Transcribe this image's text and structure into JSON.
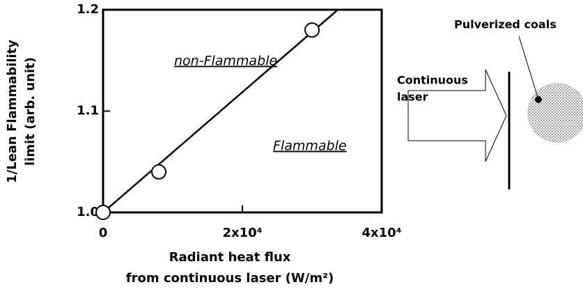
{
  "chart_data": {
    "type": "line",
    "y_label": [
      "1/Lean Flammability",
      "limit (arb. unit)"
    ],
    "x_label": [
      "Radiant heat flux",
      "from continuous laser (W/m²)"
    ],
    "annotations": [
      "non-Flammable",
      "Flammable"
    ],
    "series": [
      {
        "x": [
          0,
          8000,
          30000
        ],
        "values": [
          1.0,
          1.04,
          1.18
        ],
        "color": "#000000",
        "marker": "circle",
        "line": false
      },
      {
        "x": [
          0,
          33700
        ],
        "values": [
          1.0,
          1.2
        ],
        "color": "#000000",
        "marker": "none",
        "line": true
      }
    ],
    "xlim": [
      0,
      40000
    ],
    "ylim": [
      1.0,
      1.2
    ],
    "xticks": [
      0,
      {
        "value": 20000,
        "label": "2x10⁴"
      },
      {
        "value": 40000,
        "label": "4x10⁴"
      }
    ],
    "yticks": [
      {
        "value": 1.0,
        "label": "1.0"
      },
      1.1,
      1.2
    ]
  },
  "diagram": {
    "coal_label": "Pulverized coals",
    "laser_label": [
      "Continuous",
      "laser"
    ]
  }
}
